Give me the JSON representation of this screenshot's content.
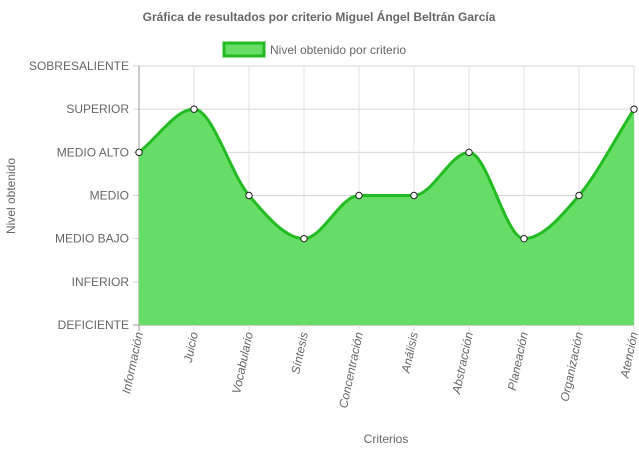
{
  "chart_data": {
    "type": "area",
    "title": "Gráfica de resultados por criterio Miguel Ángel Beltrán García",
    "xlabel": "Criterios",
    "ylabel": "Nivel obtenido",
    "categories": [
      "Información",
      "Juicio",
      "Vocabulario",
      "Síntesis",
      "Concentración",
      "Análisis",
      "Abstracción",
      "Planeación",
      "Organización",
      "Atención"
    ],
    "y_levels": [
      "DEFICIENTE",
      "INFERIOR",
      "MEDIO BAJO",
      "MEDIO",
      "MEDIO ALTO",
      "SUPERIOR",
      "SOBRESALIENTE"
    ],
    "ylim": [
      0,
      6
    ],
    "grid": true,
    "legend_position": "top",
    "series": [
      {
        "name": "Nivel obtenido por criterio",
        "values": [
          4,
          5,
          3,
          2,
          3,
          3,
          4,
          2,
          3,
          5
        ],
        "labels": [
          "MEDIO ALTO",
          "SUPERIOR",
          "MEDIO",
          "MEDIO BAJO",
          "MEDIO",
          "MEDIO",
          "MEDIO ALTO",
          "MEDIO BAJO",
          "MEDIO",
          "SUPERIOR"
        ],
        "fill_color": "#66dd66",
        "line_color": "#22bb22"
      }
    ]
  }
}
